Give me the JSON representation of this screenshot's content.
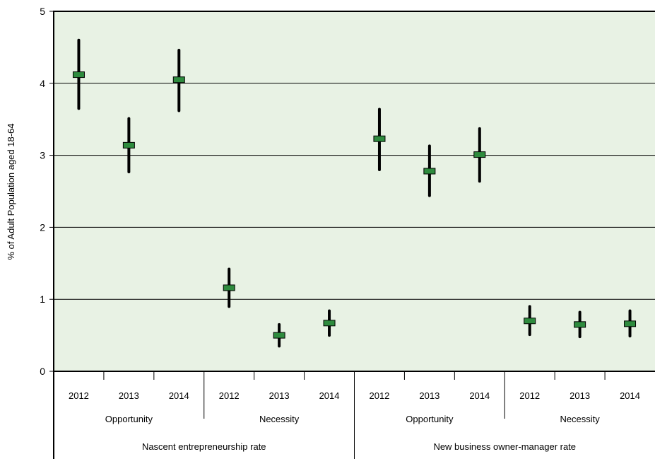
{
  "chart_data": {
    "type": "scatter",
    "subtype": "error-bar",
    "ylabel": "% of Adult Population aged 18-64",
    "ylim": [
      0,
      5
    ],
    "y_ticks": [
      "0",
      "1",
      "2",
      "3",
      "4",
      "5"
    ],
    "grid": true,
    "background_color": "#e8f2e4",
    "marker_color": "#2e8b3e",
    "bar_color": "#000000",
    "groups": [
      {
        "label": "Nascent entrepreneurship rate",
        "subgroups": [
          {
            "label": "Opportunity",
            "points": [
              {
                "year": "2012",
                "value": 4.12,
                "low": 3.65,
                "high": 4.6
              },
              {
                "year": "2013",
                "value": 3.14,
                "low": 2.77,
                "high": 3.51
              },
              {
                "year": "2014",
                "value": 4.05,
                "low": 3.62,
                "high": 4.46
              }
            ]
          },
          {
            "label": "Necessity",
            "points": [
              {
                "year": "2012",
                "value": 1.16,
                "low": 0.9,
                "high": 1.42
              },
              {
                "year": "2013",
                "value": 0.5,
                "low": 0.35,
                "high": 0.65
              },
              {
                "year": "2014",
                "value": 0.67,
                "low": 0.5,
                "high": 0.84
              }
            ]
          }
        ]
      },
      {
        "label": "New business owner-manager rate",
        "subgroups": [
          {
            "label": "Opportunity",
            "points": [
              {
                "year": "2012",
                "value": 3.23,
                "low": 2.8,
                "high": 3.64
              },
              {
                "year": "2013",
                "value": 2.78,
                "low": 2.44,
                "high": 3.13
              },
              {
                "year": "2014",
                "value": 3.01,
                "low": 2.64,
                "high": 3.37
              }
            ]
          },
          {
            "label": "Necessity",
            "points": [
              {
                "year": "2012",
                "value": 0.7,
                "low": 0.51,
                "high": 0.9
              },
              {
                "year": "2013",
                "value": 0.65,
                "low": 0.48,
                "high": 0.82
              },
              {
                "year": "2014",
                "value": 0.66,
                "low": 0.49,
                "high": 0.84
              }
            ]
          }
        ]
      }
    ]
  }
}
